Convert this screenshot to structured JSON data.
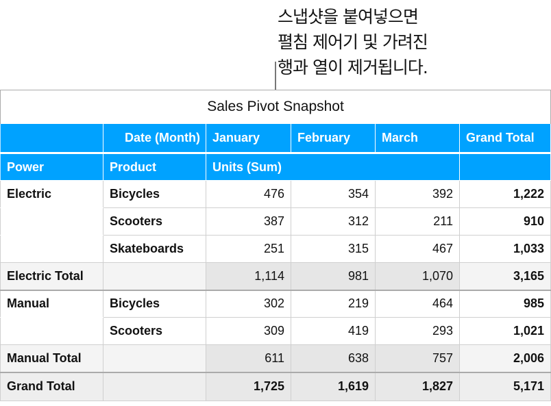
{
  "callout": {
    "lines": [
      "스냅샷을 붙여넣으면",
      "펼침 제어기 및 가려진",
      "행과 열이 제거됩니다."
    ]
  },
  "table": {
    "title": "Sales Pivot Snapshot",
    "header_color": "#00a2ff",
    "column_header_label": "Date (Month)",
    "months": [
      "January",
      "February",
      "March"
    ],
    "grand_total_label": "Grand Total",
    "row_headers": [
      "Power",
      "Product"
    ],
    "values_label": "Units (Sum)",
    "rows": [
      {
        "type": "data",
        "power": "Electric",
        "product": "Bicycles",
        "values": [
          "476",
          "354",
          "392"
        ],
        "total": "1,222"
      },
      {
        "type": "data",
        "power": "",
        "product": "Scooters",
        "values": [
          "387",
          "312",
          "211"
        ],
        "total": "910"
      },
      {
        "type": "data",
        "power": "",
        "product": "Skateboards",
        "values": [
          "251",
          "315",
          "467"
        ],
        "total": "1,033"
      },
      {
        "type": "sub",
        "power": "Electric Total",
        "product": "",
        "values": [
          "1,114",
          "981",
          "1,070"
        ],
        "total": "3,165"
      },
      {
        "type": "data",
        "power": "Manual",
        "product": "Bicycles",
        "values": [
          "302",
          "219",
          "464"
        ],
        "total": "985"
      },
      {
        "type": "data",
        "power": "",
        "product": "Scooters",
        "values": [
          "309",
          "419",
          "293"
        ],
        "total": "1,021"
      },
      {
        "type": "sub",
        "power": "Manual Total",
        "product": "",
        "values": [
          "611",
          "638",
          "757"
        ],
        "total": "2,006"
      },
      {
        "type": "grand",
        "power": "Grand Total",
        "product": "",
        "values": [
          "1,725",
          "1,619",
          "1,827"
        ],
        "total": "5,171"
      }
    ]
  }
}
